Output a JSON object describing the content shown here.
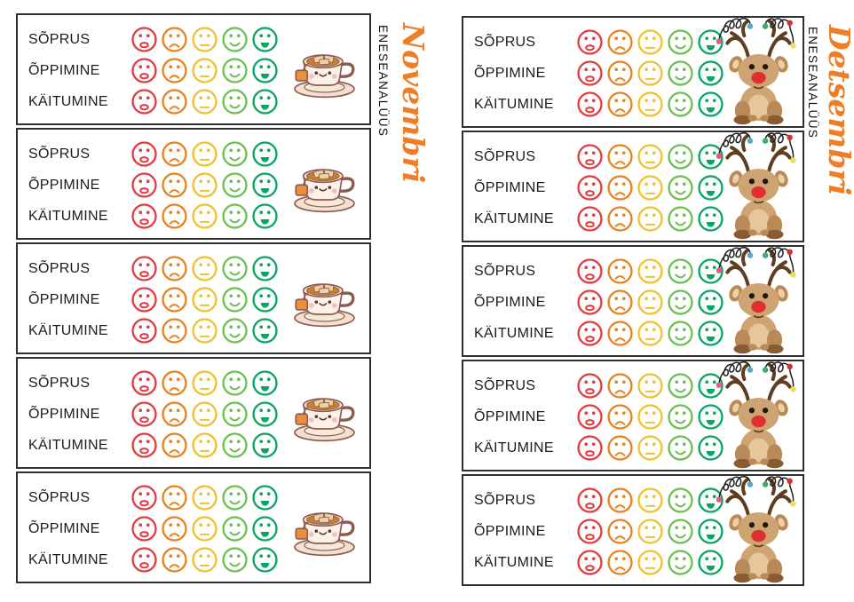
{
  "page": {
    "background": "#ffffff"
  },
  "colors": {
    "month_accent": "#ee7d26",
    "card_border": "#2f2f2f",
    "label_text": "#1c1c1c"
  },
  "columns": [
    {
      "id": "november",
      "month_label": "Novembri",
      "side_label": "ENESEANALÜÜS",
      "mascot": "teacup-image",
      "card_count": 5
    },
    {
      "id": "detsember",
      "month_label": "Detsembri",
      "side_label": "ENESEANALÜÜS",
      "mascot": "reindeer-image",
      "card_count": 5
    }
  ],
  "card": {
    "row_labels": [
      "SÕPRUS",
      "ÕPPIMINE",
      "KÄITUMINE"
    ],
    "rating_faces": [
      {
        "name": "very-sad-face",
        "color": "#e23c41",
        "mouth": "open-frown"
      },
      {
        "name": "sad-face",
        "color": "#e8821e",
        "mouth": "frown"
      },
      {
        "name": "neutral-face",
        "color": "#f0c02e",
        "mouth": "line"
      },
      {
        "name": "happy-face",
        "color": "#6cbf52",
        "mouth": "smile"
      },
      {
        "name": "very-happy-face",
        "color": "#0aa560",
        "mouth": "grin"
      }
    ]
  },
  "mascots": {
    "teacup": {
      "name": "teacup-image",
      "outline": "#8d5a50",
      "cup": "#fbf2e6",
      "rim": "#f6e9d8",
      "tea": "#c8802d",
      "marshmallow": "#ecd3a7",
      "tag": "#e8913c",
      "cheeks": "#f5bcc1",
      "saucer": "#f3e0d0",
      "face": "#503c30"
    },
    "reindeer": {
      "name": "reindeer-image",
      "fur": "#cfa473",
      "belly": "#e6c79b",
      "dark_fur": "#b98a58",
      "hoof": "#8a5a30",
      "antler": "#5f3d1e",
      "ear_inner": "#ecd0a6",
      "nose": "#e02f2f",
      "eye": "#1e1811",
      "lights_wire": "#222222",
      "bulbs": [
        "#e05a8a",
        "#5aa7c7",
        "#3fae6a",
        "#d63031",
        "#e8e15a"
      ]
    }
  }
}
